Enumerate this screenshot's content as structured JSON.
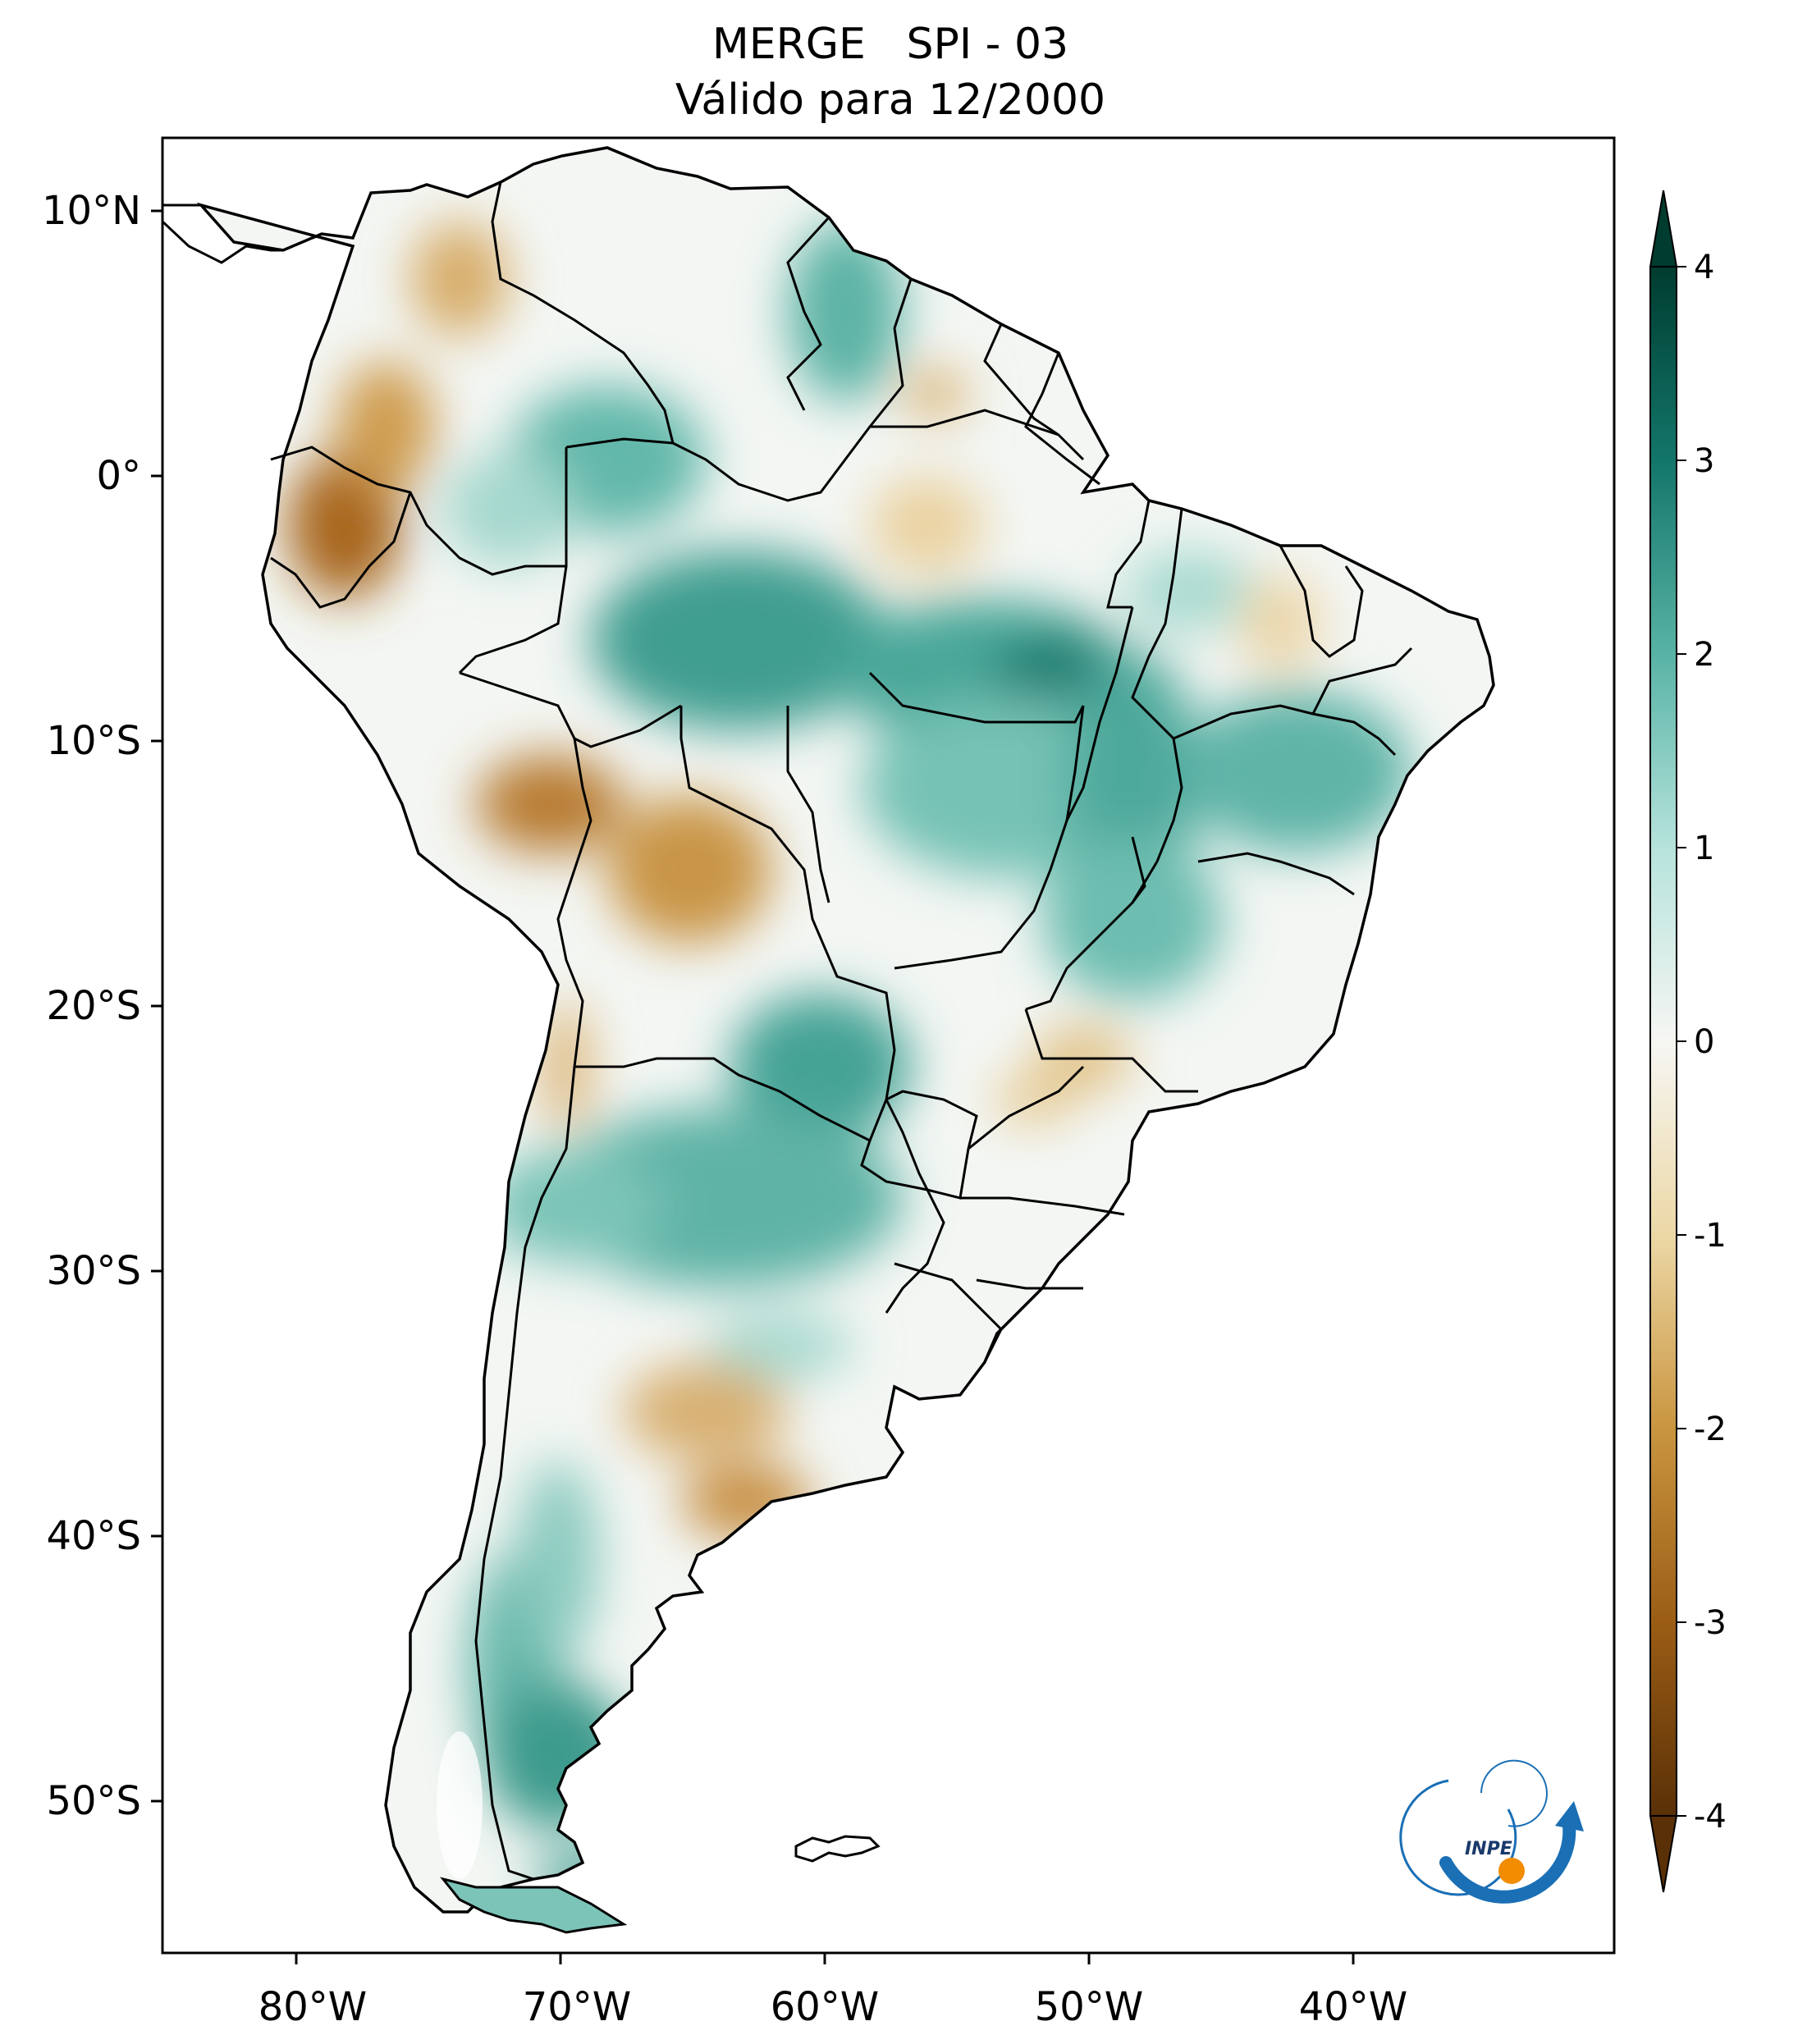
{
  "title": {
    "line1": "MERGE   SPI - 03",
    "line2": "Válido para 12/2000"
  },
  "map": {
    "region": "South America",
    "lat_ticks": [
      "10°N",
      "0°",
      "10°S",
      "20°S",
      "30°S",
      "40°S",
      "50°S"
    ],
    "lon_ticks": [
      "80°W",
      "70°W",
      "60°W",
      "50°W",
      "40°W"
    ]
  },
  "colorbar": {
    "ticks": [
      "4",
      "3",
      "2",
      "1",
      "0",
      "-1",
      "-2",
      "-3",
      "-4"
    ],
    "range": [
      -4,
      4
    ],
    "colormap": "BrBG",
    "colors": {
      "neg4": "#5a3007",
      "neg3": "#9b5d15",
      "neg2": "#c9953f",
      "neg1": "#ecd8a6",
      "zero": "#f6f6f3",
      "pos1": "#b6e3dc",
      "pos2": "#58b3a5",
      "pos3": "#13766a",
      "pos4": "#003c30"
    }
  },
  "logo": {
    "text": "INPE",
    "colors": {
      "arc": "#1a6fb5",
      "dot": "#f28c00"
    }
  }
}
